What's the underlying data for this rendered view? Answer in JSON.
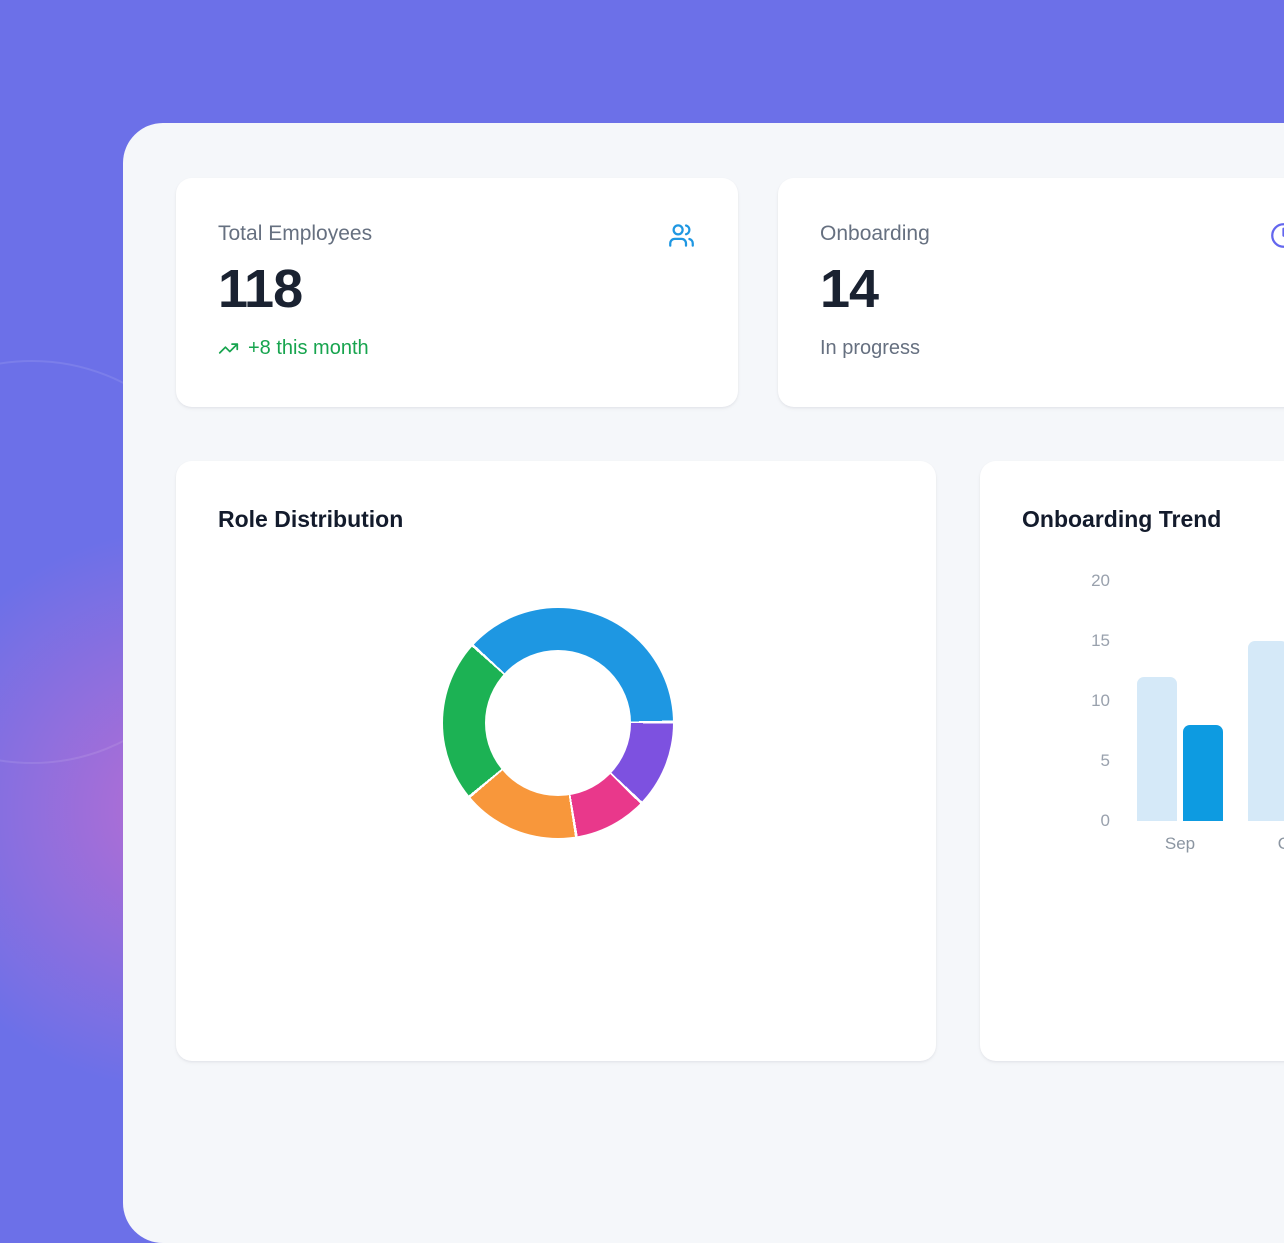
{
  "page": {
    "background_color": "#6C70E8",
    "panel_color": "#F5F7FA",
    "pink_glow_color": "#E86CC4"
  },
  "stats": [
    {
      "label": "Total Employees",
      "value": "118",
      "delta": "+8 this month",
      "delta_color": "#17A44E",
      "icon": "users-icon",
      "icon_color": "#1E97E2"
    },
    {
      "label": "Onboarding",
      "value": "14",
      "sub": "In progress",
      "icon": "clock-icon",
      "icon_color": "#6366EE"
    }
  ],
  "chart_data": [
    {
      "type": "donut",
      "title": "Role Distribution",
      "legend": "none visible",
      "start_angle_deg": 313,
      "hole_ratio": 0.635,
      "segments": [
        {
          "color": "#1E97E2",
          "percent": 38.1
        },
        {
          "color": "#7D51E0",
          "percent": 12.3
        },
        {
          "color": "#E9388B",
          "percent": 10.3
        },
        {
          "color": "#F8973B",
          "percent": 16.5
        },
        {
          "color": "#1CB254",
          "percent": 22.8
        }
      ]
    },
    {
      "type": "bar",
      "title": "Onboarding Trend",
      "categories": [
        "Sep",
        "Oct"
      ],
      "series": [
        {
          "name": "series-1",
          "color": "#D5E9F8",
          "values": [
            12,
            15
          ]
        },
        {
          "name": "series-2",
          "color": "#0D9BE1",
          "values": [
            8,
            null
          ]
        }
      ],
      "ylim": [
        0,
        20
      ],
      "yticks": [
        20,
        15,
        10,
        5,
        0
      ],
      "grid": "off",
      "legend": "none visible",
      "note": "Oct group partially cut off at right edge of viewport"
    }
  ]
}
